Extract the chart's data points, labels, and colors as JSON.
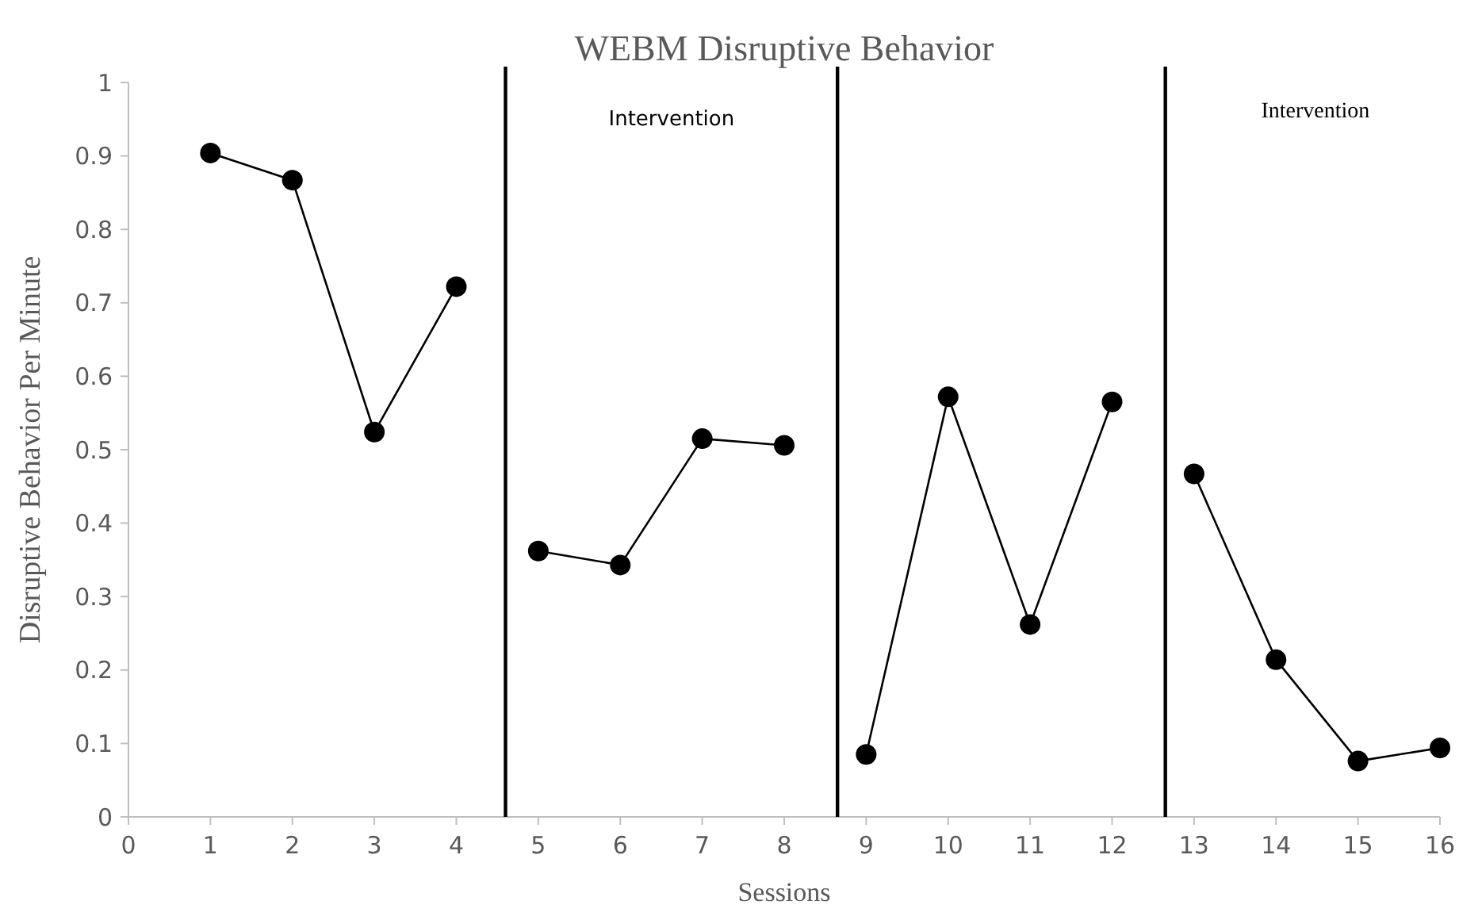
{
  "chart_data": {
    "type": "line",
    "title": "WEBM Disruptive Behavior",
    "xlabel": "Sessions",
    "ylabel": "Disruptive Behavior Per Minute",
    "xlim": [
      0,
      16
    ],
    "xticks": [
      0,
      1,
      2,
      3,
      4,
      5,
      6,
      7,
      8,
      9,
      10,
      11,
      12,
      13,
      14,
      15,
      16
    ],
    "ylim": [
      0,
      1
    ],
    "yticks": [
      0,
      0.1,
      0.2,
      0.3,
      0.4,
      0.5,
      0.6,
      0.7,
      0.8,
      0.9,
      1
    ],
    "grid": false,
    "marker": "circle",
    "line_style": "solid",
    "series": [
      {
        "color": "#000000",
        "x": [
          1,
          2,
          3,
          4
        ],
        "values": [
          0.904,
          0.867,
          0.524,
          0.722
        ]
      },
      {
        "color": "#000000",
        "x": [
          5,
          6,
          7,
          8
        ],
        "values": [
          0.362,
          0.343,
          0.515,
          0.506
        ]
      },
      {
        "color": "#000000",
        "x": [
          9,
          10,
          11,
          12
        ],
        "values": [
          0.085,
          0.572,
          0.262,
          0.565
        ]
      },
      {
        "color": "#000000",
        "x": [
          13,
          14,
          15,
          16
        ],
        "values": [
          0.467,
          0.214,
          0.076,
          0.094
        ]
      }
    ],
    "ref_lines": [
      {
        "axis": "x",
        "value": 4.6,
        "color": "#000000"
      },
      {
        "axis": "x",
        "value": 8.65,
        "color": "#000000"
      },
      {
        "axis": "x",
        "value": 12.65,
        "color": "#000000"
      }
    ],
    "annotations": [
      "Intervention",
      "Intervention"
    ]
  }
}
